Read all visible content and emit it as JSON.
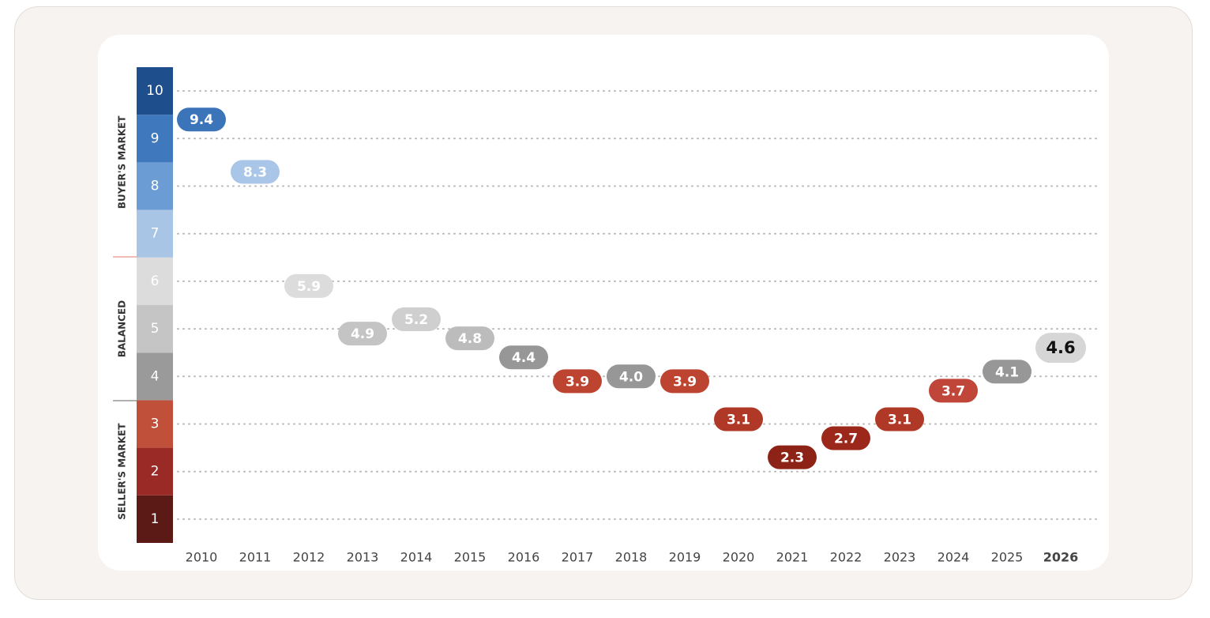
{
  "chart_data": {
    "type": "pill-line",
    "categories": [
      "2010",
      "2011",
      "2012",
      "2013",
      "2014",
      "2015",
      "2016",
      "2017",
      "2018",
      "2019",
      "2020",
      "2021",
      "2022",
      "2023",
      "2024",
      "2025",
      "2026"
    ],
    "values": [
      9.4,
      8.3,
      5.9,
      4.9,
      5.2,
      4.8,
      4.4,
      3.9,
      4.0,
      3.9,
      3.1,
      2.3,
      2.7,
      3.1,
      3.7,
      4.1,
      4.6
    ],
    "value_labels": [
      "9.4",
      "8.3",
      "5.9",
      "4.9",
      "5.2",
      "4.8",
      "4.4",
      "3.9",
      "4.0",
      "3.9",
      "3.1",
      "2.3",
      "2.7",
      "3.1",
      "3.7",
      "4.1",
      "4.6"
    ],
    "colors": [
      "#3b74b9",
      "#a9c6e8",
      "#dcdcdc",
      "#c4c4c4",
      "#cfcfcf",
      "#bcbcbc",
      "#979797",
      "#bd4431",
      "#979797",
      "#bd4431",
      "#b03826",
      "#8d2317",
      "#9b281b",
      "#b03826",
      "#bf4638",
      "#979797",
      "#d6d6d6"
    ],
    "label_colors": [
      "#ffffff",
      "#ffffff",
      "#ffffff",
      "#ffffff",
      "#ffffff",
      "#ffffff",
      "#ffffff",
      "#ffffff",
      "#ffffff",
      "#ffffff",
      "#ffffff",
      "#ffffff",
      "#ffffff",
      "#ffffff",
      "#ffffff",
      "#ffffff",
      "#111111"
    ],
    "ylim": [
      0.5,
      10.5
    ],
    "yticks": [
      1,
      2,
      3,
      4,
      5,
      6,
      7,
      8,
      9,
      10
    ],
    "band_colors": [
      "#5c1a17",
      "#9a2a25",
      "#c0503a",
      "#9a9a9a",
      "#c5c5c5",
      "#dcdcdc",
      "#a8c5e6",
      "#6b9cd4",
      "#3f78bd",
      "#1f4e8c"
    ],
    "zones": [
      "SELLER'S MARKET",
      "BALANCED",
      "BUYER'S MARKET"
    ],
    "grid": true
  }
}
